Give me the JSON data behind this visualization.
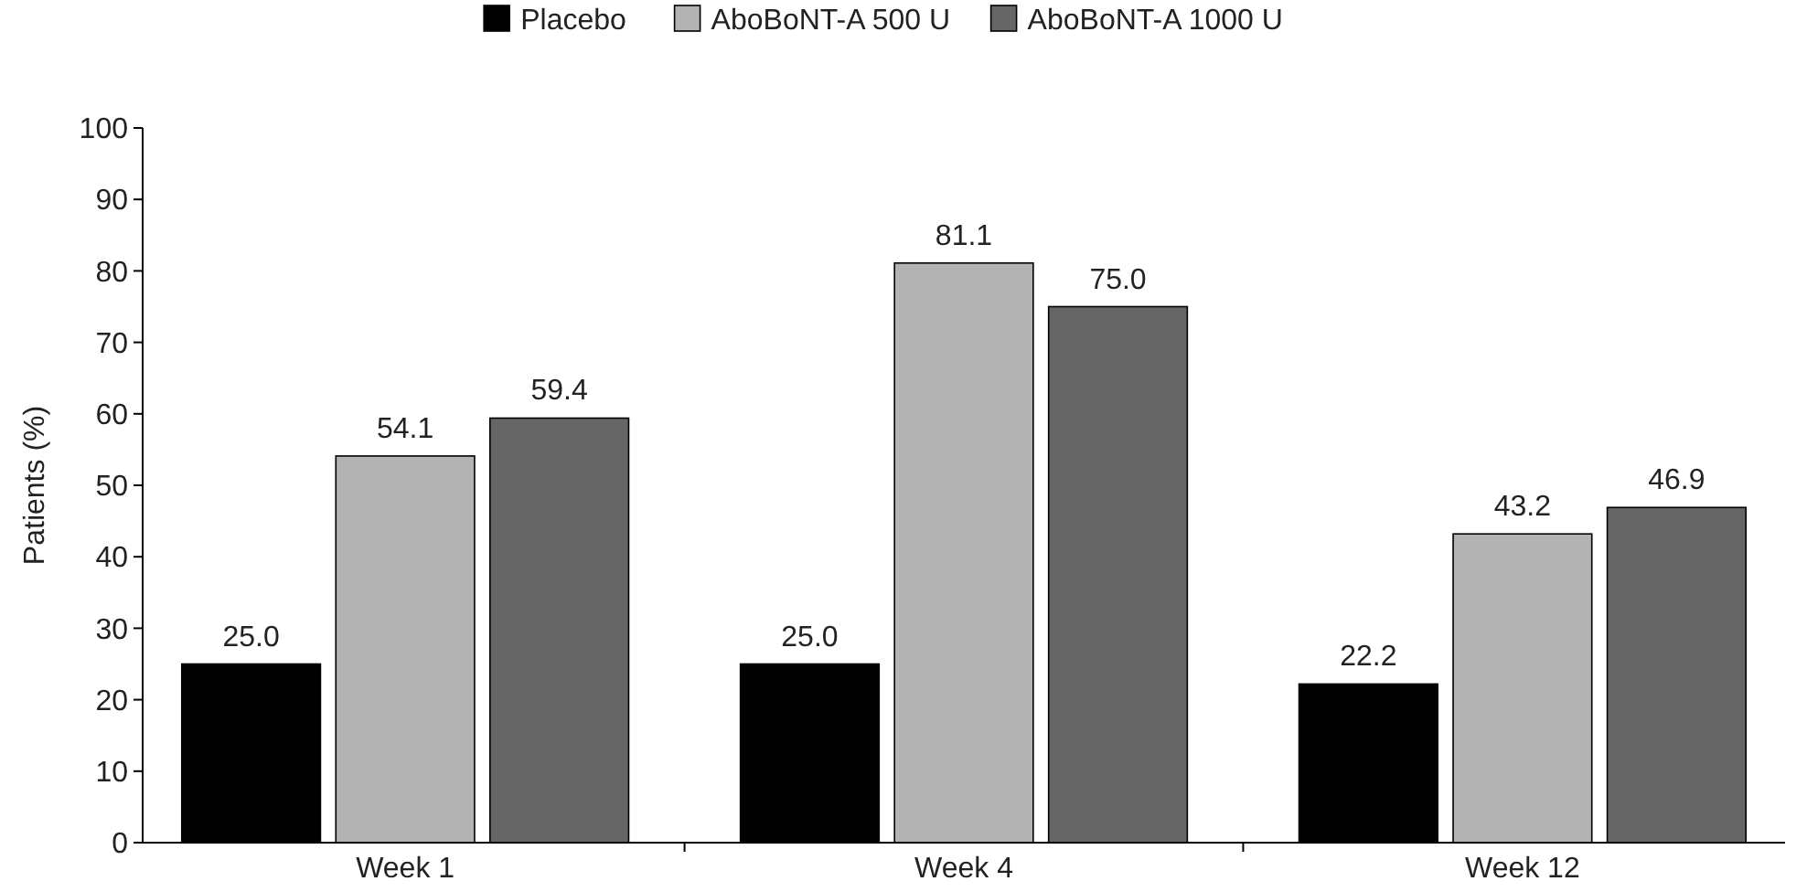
{
  "chart_data": {
    "type": "bar",
    "ylabel": "Patients (%)",
    "categories": [
      "Week 1",
      "Week 4",
      "Week 12"
    ],
    "series": [
      {
        "name": "Placebo",
        "color": "#000000",
        "values": [
          25.0,
          25.0,
          22.2
        ]
      },
      {
        "name": "AboBoNT-A 500 U",
        "color": "#b3b3b3",
        "values": [
          54.1,
          81.1,
          43.2
        ]
      },
      {
        "name": "AboBoNT-A 1000 U",
        "color": "#666666",
        "values": [
          59.4,
          75.0,
          46.9
        ]
      }
    ],
    "value_labels": [
      [
        "25.0",
        "25.0",
        "22.2"
      ],
      [
        "54.1",
        "81.1",
        "43.2"
      ],
      [
        "59.4",
        "75.0",
        "46.9"
      ]
    ],
    "ylim": [
      0,
      100
    ],
    "yticks": [
      0,
      10,
      20,
      30,
      40,
      50,
      60,
      70,
      80,
      90,
      100
    ],
    "grid": false,
    "legend": "top"
  }
}
